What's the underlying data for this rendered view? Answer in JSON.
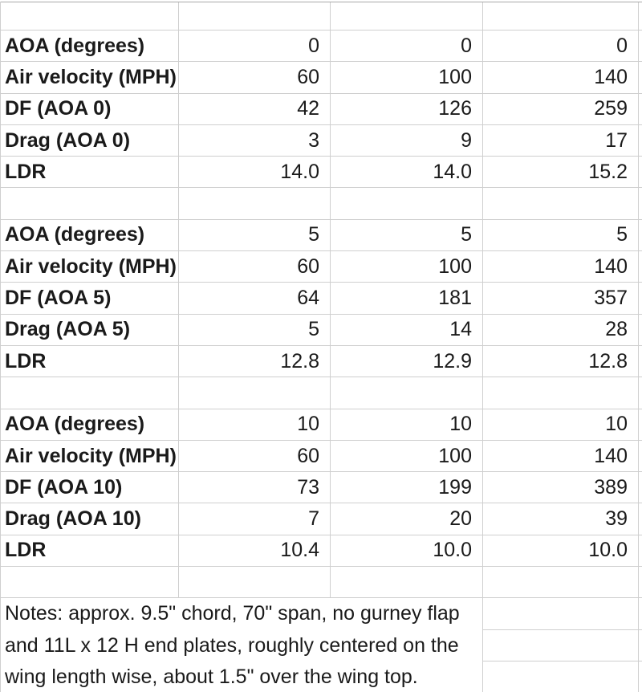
{
  "colors": {
    "background": "#ffffff",
    "gridline": "#cfcfcf",
    "outer_line": "#a9a9a9",
    "text": "#1a1a1a"
  },
  "table": {
    "blocks": [
      {
        "rows": [
          {
            "label": "AOA (degrees)",
            "values": [
              "0",
              "0",
              "0"
            ]
          },
          {
            "label": "Air velocity (MPH)",
            "values": [
              "60",
              "100",
              "140"
            ]
          },
          {
            "label": "DF (AOA 0)",
            "values": [
              "42",
              "126",
              "259"
            ]
          },
          {
            "label": "Drag (AOA 0)",
            "values": [
              "3",
              "9",
              "17"
            ]
          },
          {
            "label": "LDR",
            "values": [
              "14.0",
              "14.0",
              "15.2"
            ]
          }
        ]
      },
      {
        "rows": [
          {
            "label": "AOA (degrees)",
            "values": [
              "5",
              "5",
              "5"
            ]
          },
          {
            "label": "Air velocity (MPH)",
            "values": [
              "60",
              "100",
              "140"
            ]
          },
          {
            "label": "DF (AOA 5)",
            "values": [
              "64",
              "181",
              "357"
            ]
          },
          {
            "label": "Drag (AOA 5)",
            "values": [
              "5",
              "14",
              "28"
            ]
          },
          {
            "label": "LDR",
            "values": [
              "12.8",
              "12.9",
              "12.8"
            ]
          }
        ]
      },
      {
        "rows": [
          {
            "label": "AOA (degrees)",
            "values": [
              "10",
              "10",
              "10"
            ]
          },
          {
            "label": "Air velocity (MPH)",
            "values": [
              "60",
              "100",
              "140"
            ]
          },
          {
            "label": "DF (AOA 10)",
            "values": [
              "73",
              "199",
              "389"
            ]
          },
          {
            "label": "Drag (AOA 10)",
            "values": [
              "7",
              "20",
              "39"
            ]
          },
          {
            "label": "LDR",
            "values": [
              "10.4",
              "10.0",
              "10.0"
            ]
          }
        ]
      }
    ],
    "notes": {
      "lines": [
        "Notes: approx. 9.5\" chord, 70\" span, no gurney flap",
        "and 11L x 12 H end plates, roughly centered on the",
        "wing length wise, about 1.5\" over the wing top."
      ]
    }
  }
}
